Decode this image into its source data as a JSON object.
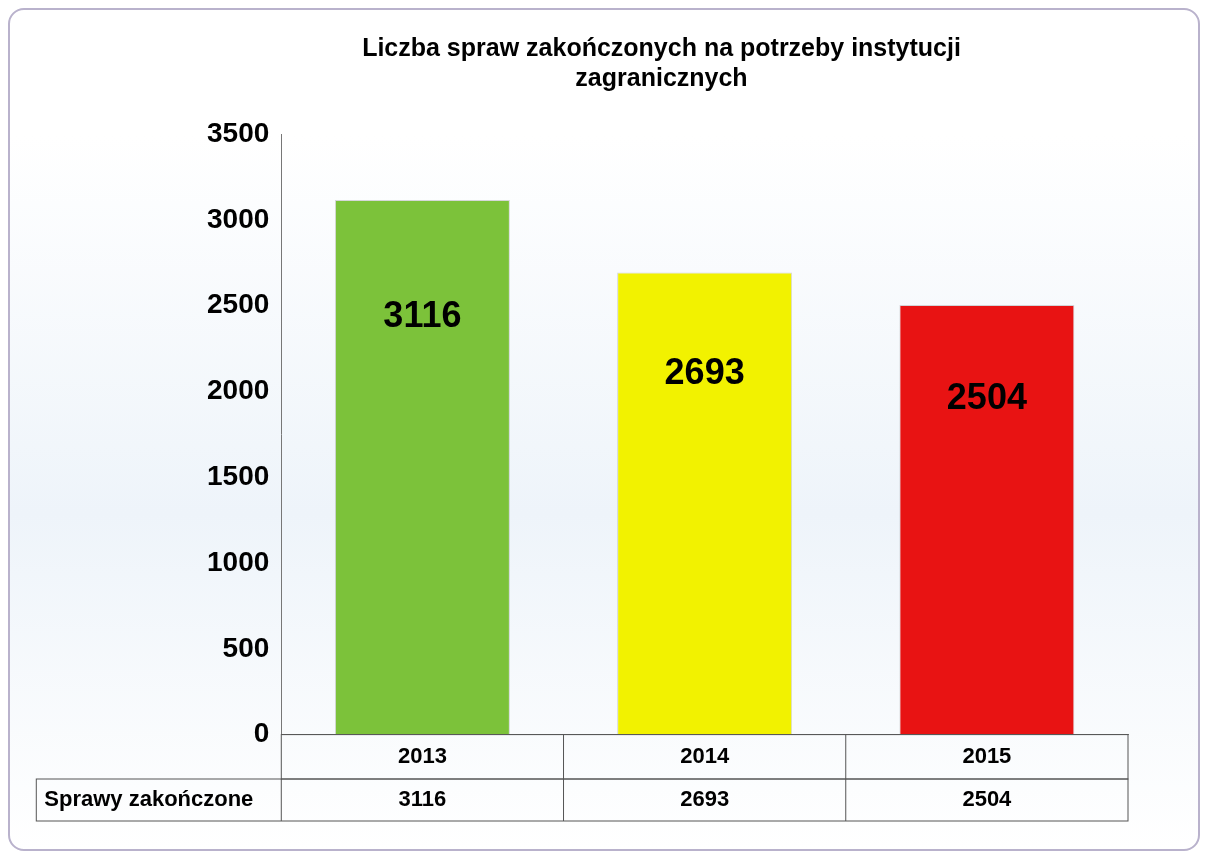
{
  "chart_data": {
    "type": "bar",
    "title": "Liczba spraw zakończonych na potrzeby instytucji zagranicznych",
    "categories": [
      "2013",
      "2014",
      "2015"
    ],
    "series": [
      {
        "name": "Sprawy zakończone",
        "values": [
          3116,
          2693,
          2504
        ],
        "colors": [
          "#7cc23a",
          "#f2f200",
          "#e81313"
        ]
      }
    ],
    "ylim": [
      0,
      3500
    ],
    "yticks": [
      0,
      500,
      1000,
      1500,
      2000,
      2500,
      3000,
      3500
    ],
    "grid": false,
    "data_labels": true
  }
}
